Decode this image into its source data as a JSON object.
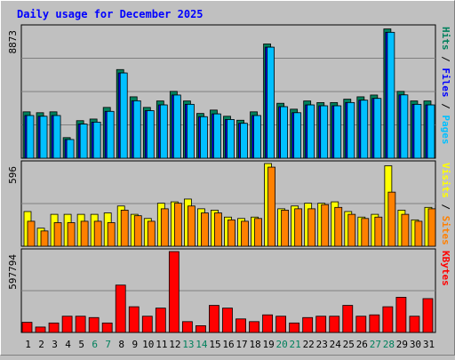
{
  "chart_data": {
    "type": "bar",
    "title": "Daily usage for December 2025",
    "categories": [
      "1",
      "2",
      "3",
      "4",
      "5",
      "6",
      "7",
      "8",
      "9",
      "10",
      "11",
      "12",
      "13",
      "14",
      "15",
      "16",
      "17",
      "18",
      "19",
      "20",
      "21",
      "22",
      "23",
      "24",
      "25",
      "26",
      "27",
      "28",
      "29",
      "30",
      "31"
    ],
    "weekend_days": [
      "6",
      "7",
      "13",
      "14",
      "20",
      "21",
      "27",
      "28"
    ],
    "panels": [
      {
        "id": "hits-files-pages",
        "max_label": "8873",
        "ymax": 8873,
        "axis_labels": [
          "Pages",
          "Files",
          "Hits"
        ],
        "series": [
          {
            "name": "Hits",
            "color": "#00805c",
            "values": [
              3150,
              3090,
              3150,
              1400,
              2550,
              2660,
              3450,
              6020,
              4170,
              3450,
              3890,
              4540,
              3890,
              3040,
              3270,
              2850,
              2580,
              3150,
              7760,
              3730,
              3330,
              3890,
              3780,
              3780,
              4010,
              4170,
              4290,
              8780,
              4540,
              3890,
              3890
            ]
          },
          {
            "name": "Files",
            "color": "#0000ff",
            "values": [
              2900,
              2850,
              2900,
              1270,
              2320,
              2450,
              3180,
              5790,
              3900,
              3230,
              3620,
              4290,
              3660,
              2820,
              3010,
              2630,
              2370,
              2900,
              7540,
              3500,
              3090,
              3620,
              3560,
              3560,
              3780,
              3940,
              4060,
              8550,
              4300,
              3660,
              3620
            ]
          },
          {
            "name": "Pages",
            "color": "#00c0ff",
            "values": [
              2900,
              2850,
              2900,
              1270,
              2320,
              2450,
              3180,
              5790,
              3900,
              3230,
              3620,
              4290,
              3660,
              2820,
              3010,
              2630,
              2370,
              2900,
              7540,
              3500,
              3090,
              3620,
              3560,
              3560,
              3780,
              3940,
              4060,
              8550,
              4300,
              3660,
              3620
            ]
          }
        ]
      },
      {
        "id": "visits-sites",
        "max_label": "596",
        "ymax": 596,
        "axis_labels": [
          "Sites",
          "Visits"
        ],
        "series": [
          {
            "name": "Visits",
            "color": "#ffff00",
            "values": [
              250,
              130,
              230,
              230,
              230,
              230,
              240,
              290,
              230,
              200,
              310,
              320,
              340,
              270,
              260,
              210,
              200,
              210,
              596,
              270,
              290,
              310,
              310,
              320,
              250,
              210,
              230,
              580,
              260,
              190,
              280
            ]
          },
          {
            "name": "Sites",
            "color": "#ff8000",
            "values": [
              180,
              110,
              170,
              170,
              180,
              180,
              170,
              260,
              220,
              180,
              270,
              310,
              290,
              240,
              240,
              190,
              180,
              200,
              570,
              260,
              270,
              270,
              300,
              280,
              230,
              200,
              210,
              390,
              230,
              180,
              270
            ]
          }
        ]
      },
      {
        "id": "kbytes",
        "max_label": "597794",
        "ymax": 597794,
        "axis_labels": [
          "KBytes"
        ],
        "series": [
          {
            "name": "KBytes",
            "color": "#ff0000",
            "values": [
              75000,
              40000,
              70000,
              120000,
              120000,
              110000,
              70000,
              350000,
              190000,
              120000,
              180000,
              597794,
              80000,
              50000,
              200000,
              180000,
              100000,
              80000,
              130000,
              120000,
              70000,
              110000,
              120000,
              120000,
              200000,
              120000,
              130000,
              190000,
              260000,
              120000,
              250000
            ]
          }
        ]
      }
    ]
  }
}
